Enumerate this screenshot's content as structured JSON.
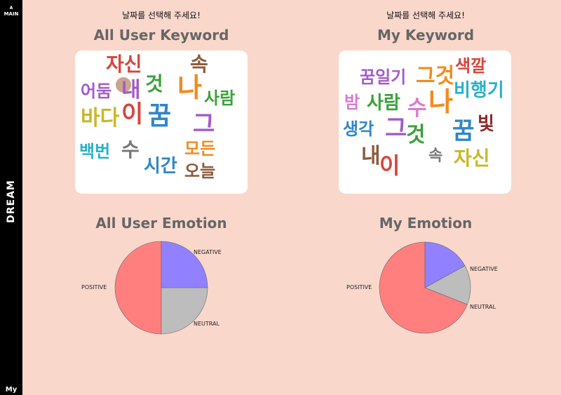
{
  "sidebar": {
    "main_prefix": "A",
    "main_label": "MAIN",
    "dream_label": "DREAM",
    "my_label": "My"
  },
  "left": {
    "prompt": "날짜를 선택해 주세요!",
    "keyword_title": "All User Keyword",
    "emotion_title": "All User Emotion",
    "words": [
      {
        "text": "자신",
        "color": "#d6453c"
      },
      {
        "text": "속",
        "color": "#8b5a3c"
      },
      {
        "text": "것",
        "color": "#3aa13a"
      },
      {
        "text": "어둠",
        "color": "#a25bc7"
      },
      {
        "text": "내",
        "color": "#a25bc7"
      },
      {
        "text": "나",
        "color": "#f08c1e"
      },
      {
        "text": "사람",
        "color": "#3aa13a"
      },
      {
        "text": "바다",
        "color": "#c8b82a"
      },
      {
        "text": "이",
        "color": "#d6453c"
      },
      {
        "text": "꿈",
        "color": "#2f86c9"
      },
      {
        "text": "그",
        "color": "#a25bc7"
      },
      {
        "text": "백번",
        "color": "#2ab1c9"
      },
      {
        "text": "수",
        "color": "#777777"
      },
      {
        "text": "모든",
        "color": "#f08c1e"
      },
      {
        "text": "시간",
        "color": "#2f86c9"
      },
      {
        "text": "오늘",
        "color": "#8b5a3c"
      }
    ],
    "emotion_labels": {
      "negative": "NEGATIVE",
      "positive": "POSITIVE",
      "neutral": "NEUTRAL"
    }
  },
  "right": {
    "prompt": "날짜를 선택해 주세요!",
    "keyword_title": "My Keyword",
    "emotion_title": "My Emotion",
    "words": [
      {
        "text": "색깔",
        "color": "#d6453c"
      },
      {
        "text": "꿈일기",
        "color": "#a25bc7"
      },
      {
        "text": "그것",
        "color": "#f08c1e"
      },
      {
        "text": "비행기",
        "color": "#2ab1c9"
      },
      {
        "text": "밤",
        "color": "#d97bd0"
      },
      {
        "text": "사람",
        "color": "#3aa13a"
      },
      {
        "text": "수",
        "color": "#d97bd0"
      },
      {
        "text": "나",
        "color": "#f08c1e"
      },
      {
        "text": "생각",
        "color": "#2f86c9"
      },
      {
        "text": "그",
        "color": "#a25bc7"
      },
      {
        "text": "것",
        "color": "#3aa13a"
      },
      {
        "text": "꿈",
        "color": "#2f86c9"
      },
      {
        "text": "빛",
        "color": "#8b2a2a"
      },
      {
        "text": "내",
        "color": "#8b5a3c"
      },
      {
        "text": "이",
        "color": "#d6453c"
      },
      {
        "text": "속",
        "color": "#777777"
      },
      {
        "text": "자신",
        "color": "#c8b82a"
      }
    ],
    "emotion_labels": {
      "negative": "NEGATIVE",
      "positive": "POSITIVE",
      "neutral": "NEUTRAL"
    }
  },
  "chart_data": [
    {
      "type": "pie",
      "title": "All User Emotion",
      "categories": [
        "NEGATIVE",
        "NEUTRAL",
        "POSITIVE"
      ],
      "values": [
        25,
        25,
        50
      ],
      "colors": [
        "#9180ff",
        "#bdbdbd",
        "#ff7f7f"
      ]
    },
    {
      "type": "pie",
      "title": "My Emotion",
      "categories": [
        "NEGATIVE",
        "NEUTRAL",
        "POSITIVE"
      ],
      "values": [
        17,
        14,
        69
      ],
      "colors": [
        "#9180ff",
        "#bdbdbd",
        "#ff7f7f"
      ]
    }
  ]
}
